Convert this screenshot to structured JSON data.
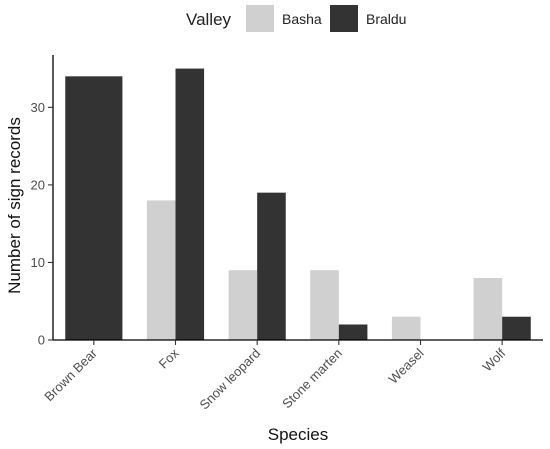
{
  "chart_data": {
    "type": "bar",
    "title": "",
    "xlabel": "Species",
    "ylabel": "Number of sign records",
    "categories": [
      "Brown Bear",
      "Fox",
      "Snow leopard",
      "Stone marten",
      "Weasel",
      "Wolf"
    ],
    "series": [
      {
        "name": "Basha",
        "color": "#d0d0d0",
        "values": [
          34,
          18,
          9,
          9,
          3,
          8
        ]
      },
      {
        "name": "Braldu",
        "color": "#333333",
        "values": [
          34,
          35,
          19,
          2,
          0,
          3
        ]
      }
    ],
    "ylim": [
      0,
      36.75
    ],
    "yticks": [
      0,
      10,
      20,
      30
    ],
    "grid": false,
    "legend": {
      "title": "Valley",
      "placement": "top"
    }
  }
}
